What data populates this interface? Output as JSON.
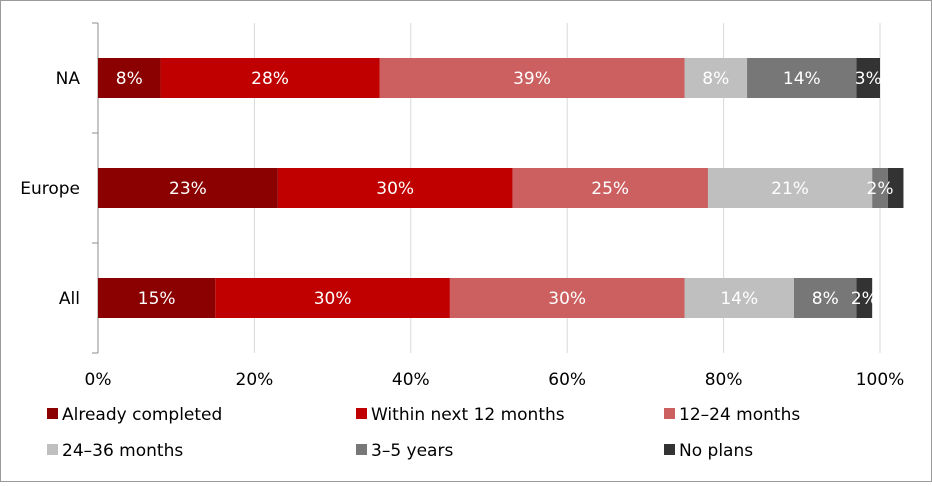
{
  "chart_data": {
    "type": "bar",
    "orientation": "horizontal",
    "stacked": true,
    "percent_stacked": true,
    "categories": [
      "NA",
      "Europe",
      "All"
    ],
    "series": [
      {
        "name": "Already completed",
        "color": "#8B0000",
        "values": [
          8,
          23,
          15
        ],
        "labels": [
          "8%",
          "23%",
          "15%"
        ]
      },
      {
        "name": "Within next 12 months",
        "color": "#C00000",
        "values": [
          28,
          30,
          30
        ],
        "labels": [
          "28%",
          "30%",
          "30%"
        ]
      },
      {
        "name": "12–24 months",
        "color": "#CC6060",
        "values": [
          39,
          25,
          30
        ],
        "labels": [
          "39%",
          "25%",
          "30%"
        ]
      },
      {
        "name": "24–36 months",
        "color": "#BFBFBF",
        "values": [
          8,
          21,
          14
        ],
        "labels": [
          "8%",
          "21%",
          "14%"
        ]
      },
      {
        "name": "3–5 years",
        "color": "#777777",
        "values": [
          14,
          2,
          8
        ],
        "labels": [
          "14%",
          "2%",
          "8%"
        ]
      },
      {
        "name": "No plans",
        "color": "#333333",
        "values": [
          3,
          2,
          2
        ],
        "labels": [
          "3%",
          "",
          "2%"
        ]
      }
    ],
    "xlim": [
      0,
      100
    ],
    "x_ticks": [
      0,
      20,
      40,
      60,
      80,
      100
    ],
    "x_tick_labels": [
      "0%",
      "20%",
      "40%",
      "60%",
      "80%",
      "100%"
    ],
    "grid": "vertical",
    "legend_placement": "bottom"
  }
}
